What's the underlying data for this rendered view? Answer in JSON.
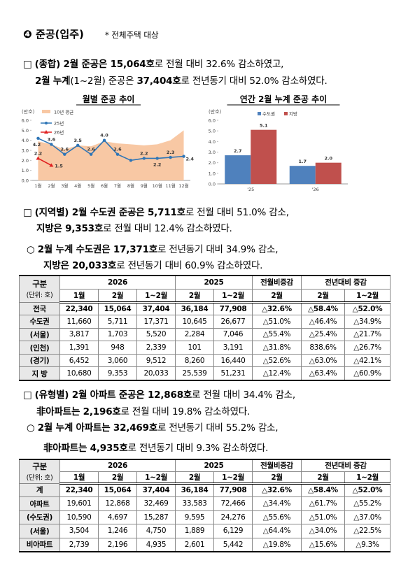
{
  "header": {
    "number": "❹",
    "title": "준공(입주)",
    "note": "* 전체주택 대상"
  },
  "paragraphs": [
    {
      "bullet": "□",
      "lines": [
        [
          {
            "text": "(종합) 2월 준공은 15,064호",
            "bold": true
          },
          "로 전월 대비 32.6% 감소하였고,"
        ],
        [
          {
            "text": "2월 누계",
            "bold": true
          },
          "(1~2월) 준공은 ",
          {
            "text": "37,404호",
            "bold": true
          },
          "로 전년동기 대비 52.0% 감소하였다."
        ]
      ]
    },
    {
      "bullet": "□",
      "lines": [
        [
          {
            "text": "(지역별) 2월 수도권 준공은 5,711호",
            "bold": true
          },
          "로 전월 대비 51.0% 감소,"
        ],
        [
          {
            "text": "지방은 9,353호",
            "bold": true
          },
          "로 전월 대비 12.4% 감소하였다."
        ]
      ]
    },
    {
      "bullet": "○",
      "lines": [
        [
          {
            "text": "2월 누계 수도권은 17,371호",
            "bold": true
          },
          "로 전년동기 대비 34.9% 감소,"
        ],
        [
          {
            "text": "지방은 20,033호",
            "bold": true
          },
          "로 전년동기 대비 60.9% 감소하였다."
        ]
      ]
    },
    {
      "bullet": "□",
      "lines": [
        [
          {
            "text": "(유형별) 2월 아파트 준공은 12,868호",
            "bold": true
          },
          "로 전월 대비 34.4% 감소,"
        ],
        [
          {
            "text": "非아파트는 2,196호",
            "bold": true
          },
          "로 전월 대비 19.8% 감소하였다."
        ]
      ]
    },
    {
      "bullet": "○",
      "lines": [
        [
          {
            "text": "2월 누계 아파트는 32,469호",
            "bold": true
          },
          "로 전년동기 대비 55.2% 감소,"
        ],
        [
          {
            "text": "非아파트는 4,935호",
            "bold": true
          },
          "로 전년동기 대비 9.3% 감소하였다."
        ]
      ]
    }
  ],
  "chart_data": [
    {
      "type": "line",
      "title": "월별 준공 추이",
      "y_label": "(만호)",
      "categories": [
        "1월",
        "2월",
        "3월",
        "4월",
        "5월",
        "6월",
        "7월",
        "8월",
        "9월",
        "10월",
        "11월",
        "12월"
      ],
      "series": [
        {
          "name": "10년 평균",
          "type": "area",
          "color": "#f8c8a4",
          "values": [
            3.9,
            3.6,
            3.1,
            3.5,
            3.4,
            3.9,
            3.7,
            3.6,
            3.5,
            3.6,
            4.0,
            5.0
          ]
        },
        {
          "name": "25년",
          "color": "#2e75b6",
          "values": [
            4.2,
            3.6,
            2.6,
            3.5,
            2.6,
            4.0,
            2.6,
            2.0,
            2.2,
            2.2,
            2.3,
            2.4
          ],
          "value_labels": [
            "4.2",
            "3.6",
            "2.6",
            "3.5",
            "2.6",
            "4.0",
            "2.6",
            null,
            "2.2",
            "2.2",
            "2.3",
            "2.4"
          ]
        },
        {
          "name": "26년",
          "color": "#e02020",
          "values": [
            2.2,
            1.5,
            null,
            null,
            null,
            null,
            null,
            null,
            null,
            null,
            null,
            null
          ],
          "value_labels": [
            "2.2",
            "1.5",
            null,
            null,
            null,
            null,
            null,
            null,
            null,
            null,
            null,
            null
          ]
        }
      ],
      "ylim": [
        0,
        6
      ],
      "yticks": [
        {
          "value": 0,
          "label": "0.0"
        },
        {
          "value": 1,
          "label": "1.0"
        },
        {
          "value": 2,
          "label": "2.0"
        },
        {
          "value": 3,
          "label": "3.0"
        },
        {
          "value": 4,
          "label": "4.0"
        },
        {
          "value": 5,
          "label": "5.0"
        },
        {
          "value": 6,
          "label": "6.0"
        }
      ]
    },
    {
      "type": "bar",
      "title": "연간 2월 누계 준공 추이",
      "y_label": "(만호)",
      "categories": [
        "'25",
        "'26"
      ],
      "series": [
        {
          "name": "수도권",
          "color": "#4f81bd",
          "values": [
            2.7,
            1.7
          ],
          "value_labels": [
            "2.7",
            "1.7"
          ]
        },
        {
          "name": "지방",
          "color": "#c0504d",
          "values": [
            5.1,
            2.0
          ],
          "value_labels": [
            "5.1",
            "2.0"
          ]
        }
      ],
      "ylim": [
        0,
        6
      ],
      "yticks": [
        {
          "value": 0,
          "label": "0.0"
        },
        {
          "value": 1,
          "label": "1.0"
        },
        {
          "value": 2,
          "label": "2.0"
        },
        {
          "value": 3,
          "label": "3.0"
        },
        {
          "value": 4,
          "label": "4.0"
        },
        {
          "value": 5,
          "label": "5.0"
        },
        {
          "value": 6,
          "label": "6.0"
        }
      ]
    }
  ],
  "tables": [
    {
      "unit_label": [
        "구분",
        "(단위: 호)"
      ],
      "groups": [
        "2026",
        "2025",
        "전월비증감",
        "전년대비 증감"
      ],
      "subheads": [
        "1월",
        "2월",
        "1~2월",
        "2월",
        "1~2월",
        "2월",
        "2월",
        "1~2월"
      ],
      "rows": [
        [
          "전국",
          "22,340",
          "15,064",
          "37,404",
          "36,184",
          "77,908",
          "△32.6%",
          "△58.4%",
          "△52.0%"
        ],
        [
          "수도권",
          "11,660",
          "5,711",
          "17,371",
          "10,645",
          "26,677",
          "△51.0%",
          "△46.4%",
          "△34.9%"
        ],
        [
          "(서울)",
          "3,817",
          "1,703",
          "5,520",
          "2,284",
          "7,046",
          "△55.4%",
          "△25.4%",
          "△21.7%"
        ],
        [
          "(인천)",
          "1,391",
          "948",
          "2,339",
          "101",
          "3,191",
          "△31.8%",
          "838.6%",
          "△26.7%"
        ],
        [
          "(경기)",
          "6,452",
          "3,060",
          "9,512",
          "8,260",
          "16,440",
          "△52.6%",
          "△63.0%",
          "△42.1%"
        ],
        [
          "지 방",
          "10,680",
          "9,353",
          "20,033",
          "25,539",
          "51,231",
          "△12.4%",
          "△63.4%",
          "△60.9%"
        ]
      ]
    },
    {
      "unit_label": [
        "구분",
        "(단위: 호)"
      ],
      "groups": [
        "2026",
        "2025",
        "전월비증감",
        "전년대비 증감"
      ],
      "subheads": [
        "1월",
        "2월",
        "1~2월",
        "2월",
        "1~2월",
        "2월",
        "2월",
        "1~2월"
      ],
      "rows": [
        [
          "계",
          "22,340",
          "15,064",
          "37,404",
          "36,184",
          "77,908",
          "△32.6%",
          "△58.4%",
          "△52.0%"
        ],
        [
          "아파트",
          "19,601",
          "12,868",
          "32,469",
          "33,583",
          "72,466",
          "△34.4%",
          "△61.7%",
          "△55.2%"
        ],
        [
          "(수도권)",
          "10,590",
          "4,697",
          "15,287",
          "9,595",
          "24,276",
          "△55.6%",
          "△51.0%",
          "△37.0%"
        ],
        [
          "(서울)",
          "3,504",
          "1,246",
          "4,750",
          "1,889",
          "6,129",
          "△64.4%",
          "△34.0%",
          "△22.5%"
        ],
        [
          "비아파트",
          "2,739",
          "2,196",
          "4,935",
          "2,601",
          "5,442",
          "△19.8%",
          "△15.6%",
          "△9.3%"
        ]
      ]
    }
  ]
}
